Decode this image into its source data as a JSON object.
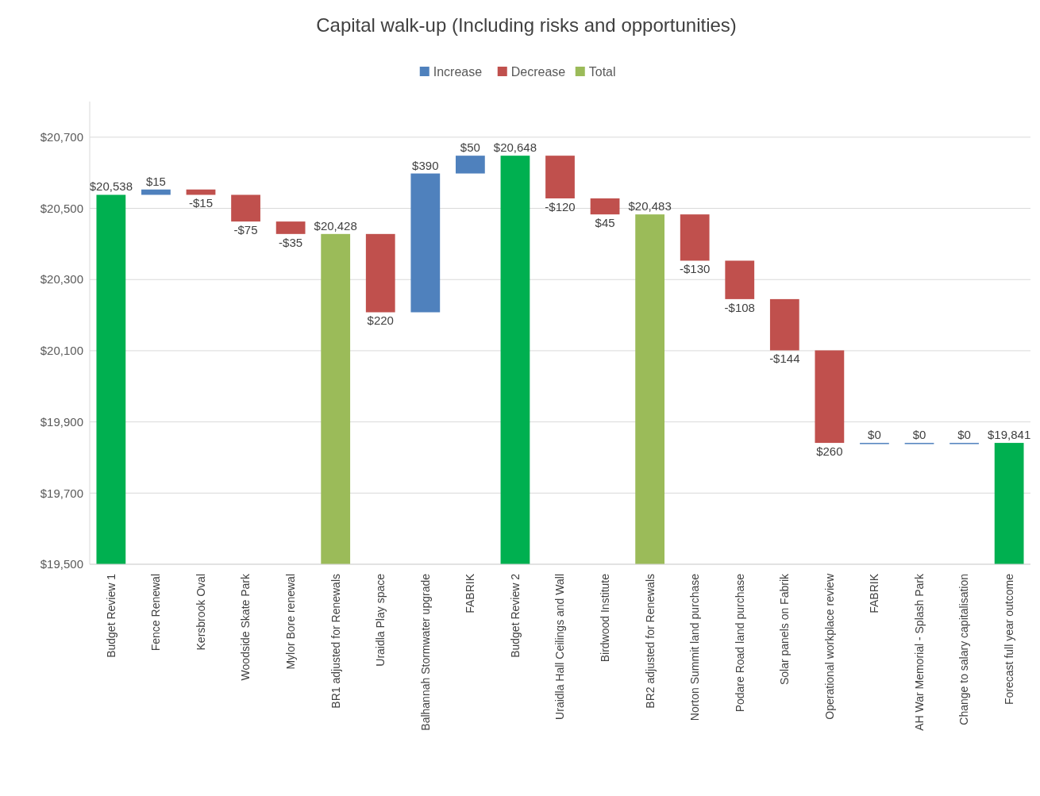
{
  "chart_data": {
    "type": "bar",
    "title": "Capital walk-up (Including risks and opportunities)",
    "categories": [
      "Budget Review 1",
      "Fence Renewal",
      "Kersbrook Oval",
      "Woodside Skate Park",
      "Mylor Bore renewal",
      "BR1 adjusted for Renewals",
      "Uraidla Play space",
      "Balhannah Stormwater upgrade",
      "FABRIK",
      "Budget Review 2",
      "Uraidla Hall Ceilings and Wall",
      "Birdwood Institute",
      "BR2 adjusted for Renewals",
      "Norton Summit land purchase",
      "Podare Road land purchase",
      "Solar panels on Fabrik",
      "Operational workplace review",
      "FABRIK",
      "AH War Memorial - Splash Park",
      "Change to salary capitalisation",
      "Forecast full year outcome"
    ],
    "series": [
      {
        "name": "Increase",
        "color": "#4f81bd",
        "values": [
          null,
          15,
          null,
          null,
          null,
          null,
          null,
          390,
          50,
          null,
          null,
          null,
          null,
          null,
          null,
          null,
          null,
          0,
          0,
          0,
          null
        ],
        "base": [
          null,
          20538,
          null,
          null,
          null,
          null,
          null,
          20208,
          20598,
          null,
          null,
          null,
          null,
          null,
          null,
          null,
          null,
          19841,
          19841,
          19841,
          null
        ],
        "value_labels": [
          null,
          "$15",
          null,
          null,
          null,
          null,
          null,
          "$390",
          "$50",
          null,
          null,
          null,
          null,
          null,
          null,
          null,
          null,
          "$0",
          "$0",
          "$0",
          null
        ]
      },
      {
        "name": "Decrease",
        "color": "#c0504d",
        "values": [
          null,
          null,
          -15,
          -75,
          -35,
          null,
          -220,
          null,
          null,
          null,
          -120,
          -45,
          null,
          -130,
          -108,
          -144,
          -260,
          null,
          null,
          null,
          null
        ],
        "base": [
          null,
          null,
          20553,
          20538,
          20463,
          null,
          20428,
          null,
          null,
          null,
          20648,
          20528,
          null,
          20483,
          20353,
          20245,
          20101,
          null,
          null,
          null,
          null
        ],
        "value_labels": [
          null,
          null,
          "-$15",
          "-$75",
          "-$35",
          null,
          "$220",
          null,
          null,
          null,
          "-$120",
          "$45",
          null,
          "-$130",
          "-$108",
          "-$144",
          "$260",
          null,
          null,
          null,
          null
        ]
      },
      {
        "name": "Total",
        "color": "#9bbb59",
        "colors": [
          "#00b050",
          null,
          null,
          null,
          null,
          "#9bbb59",
          null,
          null,
          null,
          "#00b050",
          null,
          null,
          "#9bbb59",
          null,
          null,
          null,
          null,
          null,
          null,
          null,
          "#00b050"
        ],
        "values": [
          20538,
          null,
          null,
          null,
          null,
          20428,
          null,
          null,
          null,
          20648,
          null,
          null,
          20483,
          null,
          null,
          null,
          null,
          null,
          null,
          null,
          19841
        ],
        "value_labels": [
          "$20,538",
          null,
          null,
          null,
          null,
          "$20,428",
          null,
          null,
          null,
          "$20,648",
          null,
          null,
          "$20,483",
          null,
          null,
          null,
          null,
          null,
          null,
          null,
          "$19,841"
        ]
      }
    ],
    "ylim": [
      19500,
      20800
    ],
    "yticks": [
      {
        "value": 19500,
        "label": "$19,500"
      },
      {
        "value": 19700,
        "label": "$19,700"
      },
      {
        "value": 19900,
        "label": "$19,900"
      },
      {
        "value": 20100,
        "label": "$20,100"
      },
      {
        "value": 20300,
        "label": "$20,300"
      },
      {
        "value": 20500,
        "label": "$20,500"
      },
      {
        "value": 20700,
        "label": "$20,700"
      }
    ],
    "grid": "y",
    "legend": "top"
  }
}
